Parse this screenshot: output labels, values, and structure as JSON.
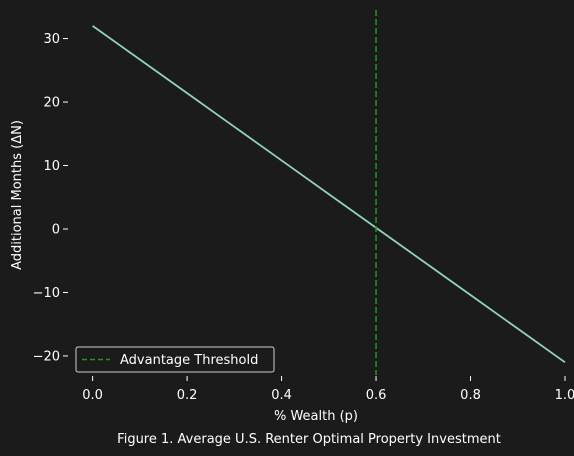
{
  "chart_data": {
    "type": "line",
    "title": "",
    "caption": "Figure 1. Average U.S. Renter Optimal Property Investment",
    "xlabel": "% Wealth (p)",
    "ylabel": "Additional Months (ΔN)",
    "xlim": [
      -0.05,
      1.0
    ],
    "ylim": [
      -23.0,
      34.5
    ],
    "xticks": [
      {
        "value": 0.0,
        "label": "0.0"
      },
      {
        "value": 0.2,
        "label": "0.2"
      },
      {
        "value": 0.4,
        "label": "0.4"
      },
      {
        "value": 0.6,
        "label": "0.6"
      },
      {
        "value": 0.8,
        "label": "0.8"
      },
      {
        "value": 1.0,
        "label": "1.0"
      }
    ],
    "yticks": [
      {
        "value": 30,
        "label": "30"
      },
      {
        "value": 20,
        "label": "20"
      },
      {
        "value": 10,
        "label": "10"
      },
      {
        "value": 0,
        "label": "0"
      },
      {
        "value": -10,
        "label": "−10"
      },
      {
        "value": -20,
        "label": "−20"
      }
    ],
    "grid": false,
    "series": [
      {
        "x": [
          0.0,
          0.1,
          0.2,
          0.3,
          0.4,
          0.5,
          0.6,
          0.7,
          0.8,
          0.9,
          1.0
        ],
        "y": [
          32.0,
          26.7,
          21.4,
          16.1,
          10.8,
          5.5,
          0.2,
          -5.1,
          -10.4,
          -15.7,
          -21.0
        ],
        "color": "#8fd3bf"
      }
    ],
    "vlines": [
      {
        "name": "Advantage Threshold",
        "x": 0.6,
        "color": "#1a9a1a",
        "style": "dashed"
      }
    ],
    "legend": {
      "position": "lower-left",
      "entries": [
        "Advantage Threshold"
      ]
    },
    "colors": {
      "background": "#1b1b1b",
      "text": "#ffffff",
      "legend_border": "#cfcfcf",
      "legend_bg": "#1b1b1b"
    }
  }
}
